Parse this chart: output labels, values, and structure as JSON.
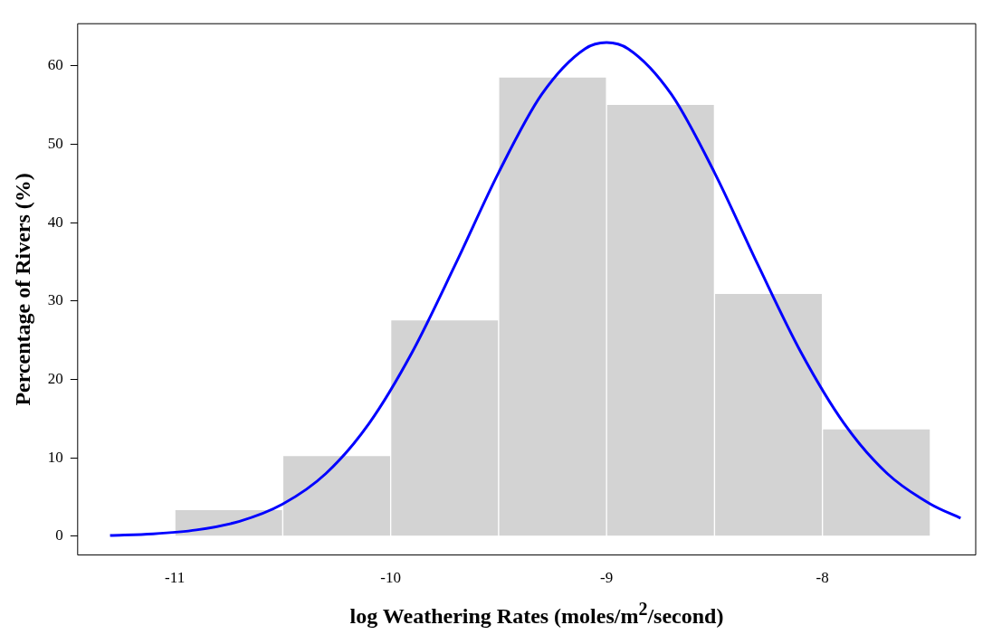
{
  "chart_data": {
    "type": "histogram",
    "xlabel": "log Weathering Rates (moles/m$^{2}$/second)",
    "ylabel": "Percentage of Rivers (%)",
    "bins": [
      -11,
      -10.5,
      -10,
      -9.5,
      -9,
      -8.5,
      -8,
      -7.5
    ],
    "values": [
      3.4,
      10.3,
      27.6,
      58.6,
      55.1,
      31.0,
      13.7
    ],
    "color": "#d3d3d3",
    "series": [
      {
        "type": "line",
        "color": "#0000ff",
        "x": [
          -11.3,
          -11.1,
          -10.9,
          -10.7,
          -10.5,
          -10.3,
          -10.1,
          -9.9,
          -9.7,
          -9.5,
          -9.3,
          -9.1,
          -9,
          -8.9,
          -8.7,
          -8.5,
          -8.3,
          -8.1,
          -7.9,
          -7.7,
          -7.5,
          -7.36
        ],
        "values": [
          0.1,
          0.3,
          0.8,
          1.9,
          4.1,
          8.0,
          14.4,
          23.5,
          34.7,
          46.4,
          56.4,
          62.2,
          63,
          62.2,
          56.4,
          46.4,
          34.7,
          23.5,
          14.4,
          8.0,
          4.1,
          2.3
        ]
      }
    ],
    "xlim": [
      -11.45,
      -7.29
    ],
    "ylim": [
      -2.4,
      65.4
    ],
    "xticks": [
      -11,
      -10,
      -9,
      -8
    ],
    "yticks": [
      0,
      10,
      20,
      30,
      40,
      50,
      60
    ],
    "grid": false,
    "legend": false
  }
}
